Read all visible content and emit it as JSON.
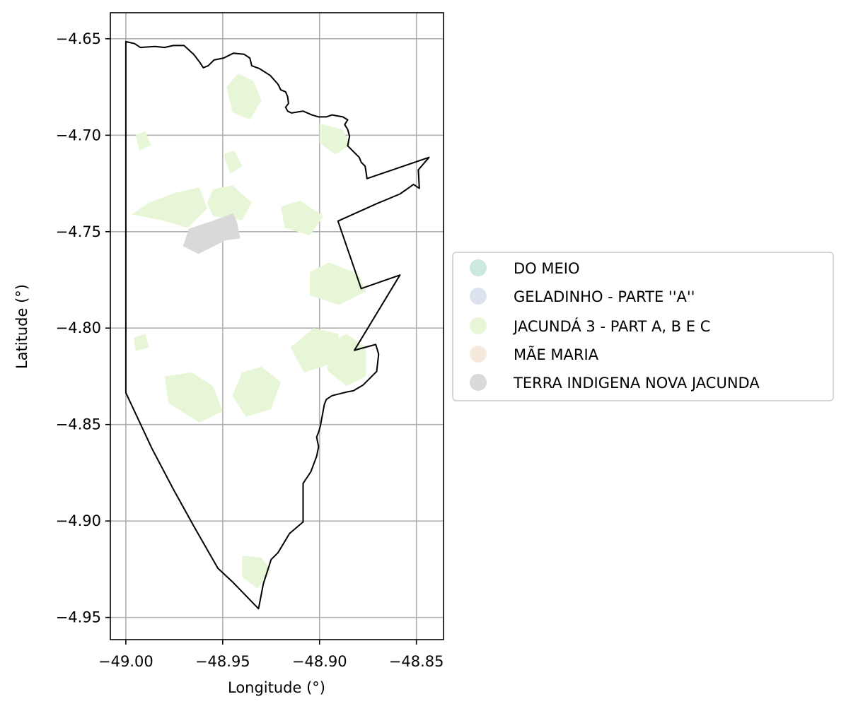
{
  "map": {
    "xlabel": "Longitude (°)",
    "ylabel": "Latitude (°)",
    "xlim": [
      -49.008,
      -48.836
    ],
    "ylim": [
      -4.9615,
      -4.6365
    ],
    "grid": true,
    "legend_position": "center-left outside plot",
    "x_ticks": [
      {
        "value": -49.0,
        "label": "−49.00"
      },
      {
        "value": -48.95,
        "label": "−48.95"
      },
      {
        "value": -48.9,
        "label": "−48.90"
      },
      {
        "value": -48.85,
        "label": "−48.85"
      }
    ],
    "y_ticks": [
      {
        "value": -4.65,
        "label": "−4.65"
      },
      {
        "value": -4.7,
        "label": "−4.70"
      },
      {
        "value": -4.75,
        "label": "−4.75"
      },
      {
        "value": -4.8,
        "label": "−4.80"
      },
      {
        "value": -4.85,
        "label": "−4.85"
      },
      {
        "value": -4.9,
        "label": "−4.90"
      },
      {
        "value": -4.95,
        "label": "−4.95"
      }
    ],
    "legend": [
      {
        "label": "DO MEIO",
        "color": "#cbe9dc"
      },
      {
        "label": "GELADINHO - PARTE ''A''",
        "color": "#dce3ee"
      },
      {
        "label": "JACUNDÁ 3 - PART A, B E C",
        "color": "#e8f6d8"
      },
      {
        "label": "MÃE MARIA",
        "color": "#f4e9dc"
      },
      {
        "label": "TERRA INDIGENA NOVA JACUNDA",
        "color": "#d9d9d9"
      }
    ],
    "boundary": [
      [
        -49.0,
        -4.6515
      ],
      [
        -48.9955,
        -4.6525
      ],
      [
        -48.9925,
        -4.6545
      ],
      [
        -48.985,
        -4.654
      ],
      [
        -48.98,
        -4.6545
      ],
      [
        -48.9755,
        -4.6535
      ],
      [
        -48.97,
        -4.6535
      ],
      [
        -48.965,
        -4.658
      ],
      [
        -48.962,
        -4.662
      ],
      [
        -48.96,
        -4.665
      ],
      [
        -48.9575,
        -4.664
      ],
      [
        -48.9545,
        -4.661
      ],
      [
        -48.9495,
        -4.66
      ],
      [
        -48.9445,
        -4.6575
      ],
      [
        -48.939,
        -4.658
      ],
      [
        -48.936,
        -4.66
      ],
      [
        -48.935,
        -4.664
      ],
      [
        -48.931,
        -4.6655
      ],
      [
        -48.9255,
        -4.669
      ],
      [
        -48.9215,
        -4.6735
      ],
      [
        -48.92,
        -4.6765
      ],
      [
        -48.9175,
        -4.6775
      ],
      [
        -48.9165,
        -4.68
      ],
      [
        -48.916,
        -4.6835
      ],
      [
        -48.9175,
        -4.6855
      ],
      [
        -48.9165,
        -4.6875
      ],
      [
        -48.9145,
        -4.6885
      ],
      [
        -48.9085,
        -4.6875
      ],
      [
        -48.904,
        -4.6895
      ],
      [
        -48.9005,
        -4.6905
      ],
      [
        -48.8965,
        -4.6905
      ],
      [
        -48.8935,
        -4.6895
      ],
      [
        -48.888,
        -4.6905
      ],
      [
        -48.8855,
        -4.692
      ],
      [
        -48.887,
        -4.6945
      ],
      [
        -48.8855,
        -4.697
      ],
      [
        -48.8845,
        -4.7005
      ],
      [
        -48.8855,
        -4.7055
      ],
      [
        -48.8825,
        -4.7085
      ],
      [
        -48.8795,
        -4.7115
      ],
      [
        -48.8785,
        -4.714
      ],
      [
        -48.8765,
        -4.716
      ],
      [
        -48.876,
        -4.719
      ],
      [
        -48.8755,
        -4.7225
      ],
      [
        -48.8435,
        -4.7115
      ],
      [
        -48.849,
        -4.718
      ],
      [
        -48.8485,
        -4.7275
      ],
      [
        -48.8515,
        -4.7255
      ],
      [
        -48.8585,
        -4.7305
      ],
      [
        -48.8705,
        -4.7355
      ],
      [
        -48.8905,
        -4.7445
      ],
      [
        -48.8785,
        -4.7795
      ],
      [
        -48.8585,
        -4.7725
      ],
      [
        -48.882,
        -4.8115
      ],
      [
        -48.871,
        -4.8085
      ],
      [
        -48.8695,
        -4.8135
      ],
      [
        -48.8705,
        -4.8225
      ],
      [
        -48.8725,
        -4.8245
      ],
      [
        -48.8775,
        -4.8295
      ],
      [
        -48.8825,
        -4.8325
      ],
      [
        -48.8855,
        -4.833
      ],
      [
        -48.8935,
        -4.835
      ],
      [
        -48.8965,
        -4.837
      ],
      [
        -48.8975,
        -4.8395
      ],
      [
        -48.899,
        -4.8475
      ],
      [
        -48.8995,
        -4.8505
      ],
      [
        -48.9005,
        -4.854
      ],
      [
        -48.9015,
        -4.8565
      ],
      [
        -48.9005,
        -4.8615
      ],
      [
        -48.9015,
        -4.8665
      ],
      [
        -48.9045,
        -4.8745
      ],
      [
        -48.9085,
        -4.8805
      ],
      [
        -48.9085,
        -4.8905
      ],
      [
        -48.9085,
        -4.9005
      ],
      [
        -48.9155,
        -4.9065
      ],
      [
        -48.9215,
        -4.9165
      ],
      [
        -48.925,
        -4.92
      ],
      [
        -48.929,
        -4.9325
      ],
      [
        -48.9315,
        -4.9455
      ],
      [
        -48.945,
        -4.9315
      ],
      [
        -48.9525,
        -4.9245
      ],
      [
        -48.965,
        -4.9025
      ],
      [
        -48.9755,
        -4.8835
      ],
      [
        -48.9865,
        -4.8625
      ],
      [
        -49.0,
        -4.8335
      ],
      [
        -49.0,
        -4.6515
      ]
    ],
    "indigenous_land_area": [
      [
        -48.9705,
        -4.7575
      ],
      [
        -48.9625,
        -4.7615
      ],
      [
        -48.9485,
        -4.7545
      ],
      [
        -48.941,
        -4.7535
      ],
      [
        -48.9425,
        -4.7455
      ],
      [
        -48.9445,
        -4.7405
      ],
      [
        -48.9555,
        -4.7445
      ],
      [
        -48.9675,
        -4.7485
      ],
      [
        -48.9705,
        -4.7575
      ]
    ],
    "jacunda_patches": [
      [
        [
          -48.93,
          -4.682
        ],
        [
          -48.934,
          -4.672
        ],
        [
          -48.942,
          -4.668
        ],
        [
          -48.948,
          -4.675
        ],
        [
          -48.945,
          -4.688
        ],
        [
          -48.936,
          -4.692
        ],
        [
          -48.93,
          -4.682
        ]
      ],
      [
        [
          -48.988,
          -4.735
        ],
        [
          -48.975,
          -4.73
        ],
        [
          -48.962,
          -4.727
        ],
        [
          -48.958,
          -4.738
        ],
        [
          -48.968,
          -4.748
        ],
        [
          -48.982,
          -4.744
        ],
        [
          -48.997,
          -4.741
        ],
        [
          -48.988,
          -4.735
        ]
      ],
      [
        [
          -48.955,
          -4.728
        ],
        [
          -48.945,
          -4.726
        ],
        [
          -48.935,
          -4.735
        ],
        [
          -48.94,
          -4.744
        ],
        [
          -48.955,
          -4.742
        ],
        [
          -48.958,
          -4.735
        ],
        [
          -48.955,
          -4.728
        ]
      ],
      [
        [
          -48.92,
          -4.737
        ],
        [
          -48.91,
          -4.734
        ],
        [
          -48.898,
          -4.742
        ],
        [
          -48.905,
          -4.752
        ],
        [
          -48.918,
          -4.748
        ],
        [
          -48.92,
          -4.737
        ]
      ],
      [
        [
          -48.905,
          -4.771
        ],
        [
          -48.895,
          -4.766
        ],
        [
          -48.88,
          -4.772
        ],
        [
          -48.876,
          -4.781
        ],
        [
          -48.89,
          -4.788
        ],
        [
          -48.905,
          -4.783
        ],
        [
          -48.905,
          -4.771
        ]
      ],
      [
        [
          -48.915,
          -4.81
        ],
        [
          -48.903,
          -4.8
        ],
        [
          -48.89,
          -4.803
        ],
        [
          -48.892,
          -4.818
        ],
        [
          -48.908,
          -4.823
        ],
        [
          -48.915,
          -4.81
        ]
      ],
      [
        [
          -48.98,
          -4.825
        ],
        [
          -48.966,
          -4.823
        ],
        [
          -48.955,
          -4.83
        ],
        [
          -48.95,
          -4.843
        ],
        [
          -48.962,
          -4.849
        ],
        [
          -48.978,
          -4.839
        ],
        [
          -48.98,
          -4.825
        ]
      ],
      [
        [
          -48.94,
          -4.823
        ],
        [
          -48.93,
          -4.82
        ],
        [
          -48.92,
          -4.828
        ],
        [
          -48.925,
          -4.842
        ],
        [
          -48.938,
          -4.846
        ],
        [
          -48.945,
          -4.835
        ],
        [
          -48.94,
          -4.823
        ]
      ],
      [
        [
          -48.896,
          -4.808
        ],
        [
          -48.886,
          -4.803
        ],
        [
          -48.876,
          -4.81
        ],
        [
          -48.876,
          -4.825
        ],
        [
          -48.886,
          -4.83
        ],
        [
          -48.896,
          -4.822
        ],
        [
          -48.896,
          -4.808
        ]
      ],
      [
        [
          -48.94,
          -4.918
        ],
        [
          -48.93,
          -4.919
        ],
        [
          -48.925,
          -4.926
        ],
        [
          -48.932,
          -4.935
        ],
        [
          -48.94,
          -4.929
        ],
        [
          -48.94,
          -4.918
        ]
      ],
      [
        [
          -48.9,
          -4.694
        ],
        [
          -48.888,
          -4.697
        ],
        [
          -48.884,
          -4.705
        ],
        [
          -48.892,
          -4.71
        ],
        [
          -48.9,
          -4.704
        ],
        [
          -48.9,
          -4.694
        ]
      ],
      [
        [
          -48.995,
          -4.7
        ],
        [
          -48.99,
          -4.698
        ],
        [
          -48.987,
          -4.705
        ],
        [
          -48.993,
          -4.708
        ],
        [
          -48.995,
          -4.7
        ]
      ],
      [
        [
          -48.95,
          -4.71
        ],
        [
          -48.944,
          -4.708
        ],
        [
          -48.94,
          -4.716
        ],
        [
          -48.946,
          -4.72
        ],
        [
          -48.95,
          -4.71
        ]
      ],
      [
        [
          -48.996,
          -4.805
        ],
        [
          -48.99,
          -4.803
        ],
        [
          -48.988,
          -4.81
        ],
        [
          -48.995,
          -4.812
        ],
        [
          -48.996,
          -4.805
        ]
      ]
    ]
  }
}
